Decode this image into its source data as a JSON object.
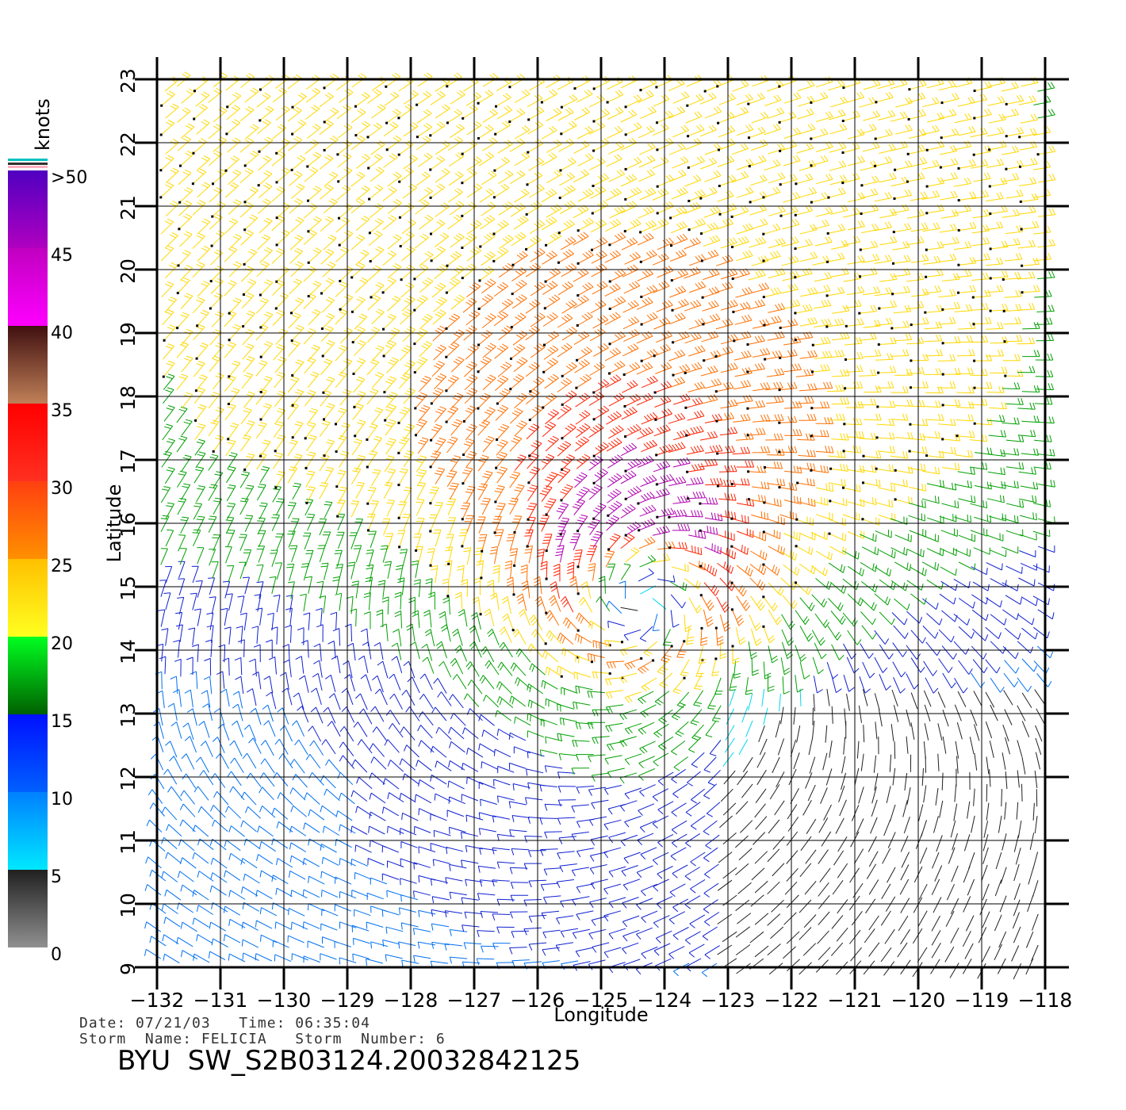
{
  "header": {
    "date_label": "Date:",
    "date": "07/21/03",
    "time_label": "Time:",
    "time": "06:35:04",
    "storm_name_label": "Storm  Name:",
    "storm_name": "FELICIA",
    "storm_number_label": "Storm  Number:",
    "storm_number": "6"
  },
  "title": "BYU  SW_S2B03124.20032842125",
  "colorbar": {
    "unit": "knots",
    "labels": [
      ">50",
      "45",
      "40",
      "35",
      "30",
      "25",
      "20",
      "15",
      "10",
      "5",
      "0"
    ],
    "bands": [
      {
        "from": 0,
        "to": 5,
        "colors": [
          "#909090",
          "#202020"
        ]
      },
      {
        "from": 5,
        "to": 10,
        "colors": [
          "#00e8ff",
          "#0080ff"
        ]
      },
      {
        "from": 10,
        "to": 15,
        "colors": [
          "#0060ff",
          "#0010ff"
        ]
      },
      {
        "from": 15,
        "to": 20,
        "colors": [
          "#006000",
          "#00ff20"
        ]
      },
      {
        "from": 20,
        "to": 25,
        "colors": [
          "#ffff20",
          "#ffc000"
        ]
      },
      {
        "from": 25,
        "to": 30,
        "colors": [
          "#ff9000",
          "#ff4010"
        ]
      },
      {
        "from": 30,
        "to": 35,
        "colors": [
          "#ff3020",
          "#ff0000"
        ]
      },
      {
        "from": 35,
        "to": 40,
        "colors": [
          "#c08058",
          "#401010"
        ]
      },
      {
        "from": 40,
        "to": 45,
        "colors": [
          "#ff00ff",
          "#c000c0"
        ]
      },
      {
        "from": 45,
        "to": 50,
        "colors": [
          "#b000c0",
          "#5000c0"
        ]
      }
    ]
  },
  "map": {
    "xlabel": "Longitude",
    "ylabel": "Latitude",
    "x_ticks": [
      "-132",
      "-131",
      "-130",
      "-129",
      "-128",
      "-127",
      "-126",
      "-125",
      "-124",
      "-123",
      "-122",
      "-121",
      "-120",
      "-119",
      "-118"
    ],
    "y_ticks": [
      "9",
      "10",
      "11",
      "12",
      "13",
      "14",
      "15",
      "16",
      "17",
      "18",
      "19",
      "20",
      "21",
      "22",
      "23"
    ],
    "lon_range": [
      -132,
      -118
    ],
    "lat_range": [
      9,
      23
    ],
    "storm_center": {
      "lon": -124.4,
      "lat": 15.0
    },
    "wind_field": "scatterometer wind barbs colored by speed (knots)"
  }
}
